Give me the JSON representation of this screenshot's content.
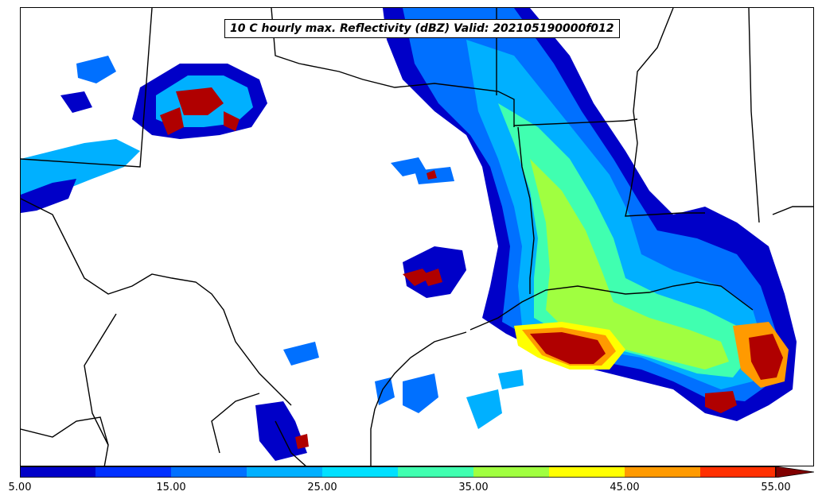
{
  "title": "10 C hourly max. Reflectivity (dBZ) Valid: 202105190000f012",
  "colorbar": {
    "levels": [
      5,
      10,
      15,
      20,
      25,
      30,
      35,
      40,
      45,
      50,
      55
    ],
    "colors": [
      "#0000c8",
      "#0030ff",
      "#0070ff",
      "#00b0ff",
      "#00e0ff",
      "#40ffb0",
      "#a0ff40",
      "#ffff00",
      "#ff9a00",
      "#ff3000",
      "#b00000"
    ],
    "extend_color": "#800000",
    "tick_labels": [
      "5.00",
      "15.00",
      "25.00",
      "35.00",
      "45.00",
      "55.00"
    ]
  }
}
